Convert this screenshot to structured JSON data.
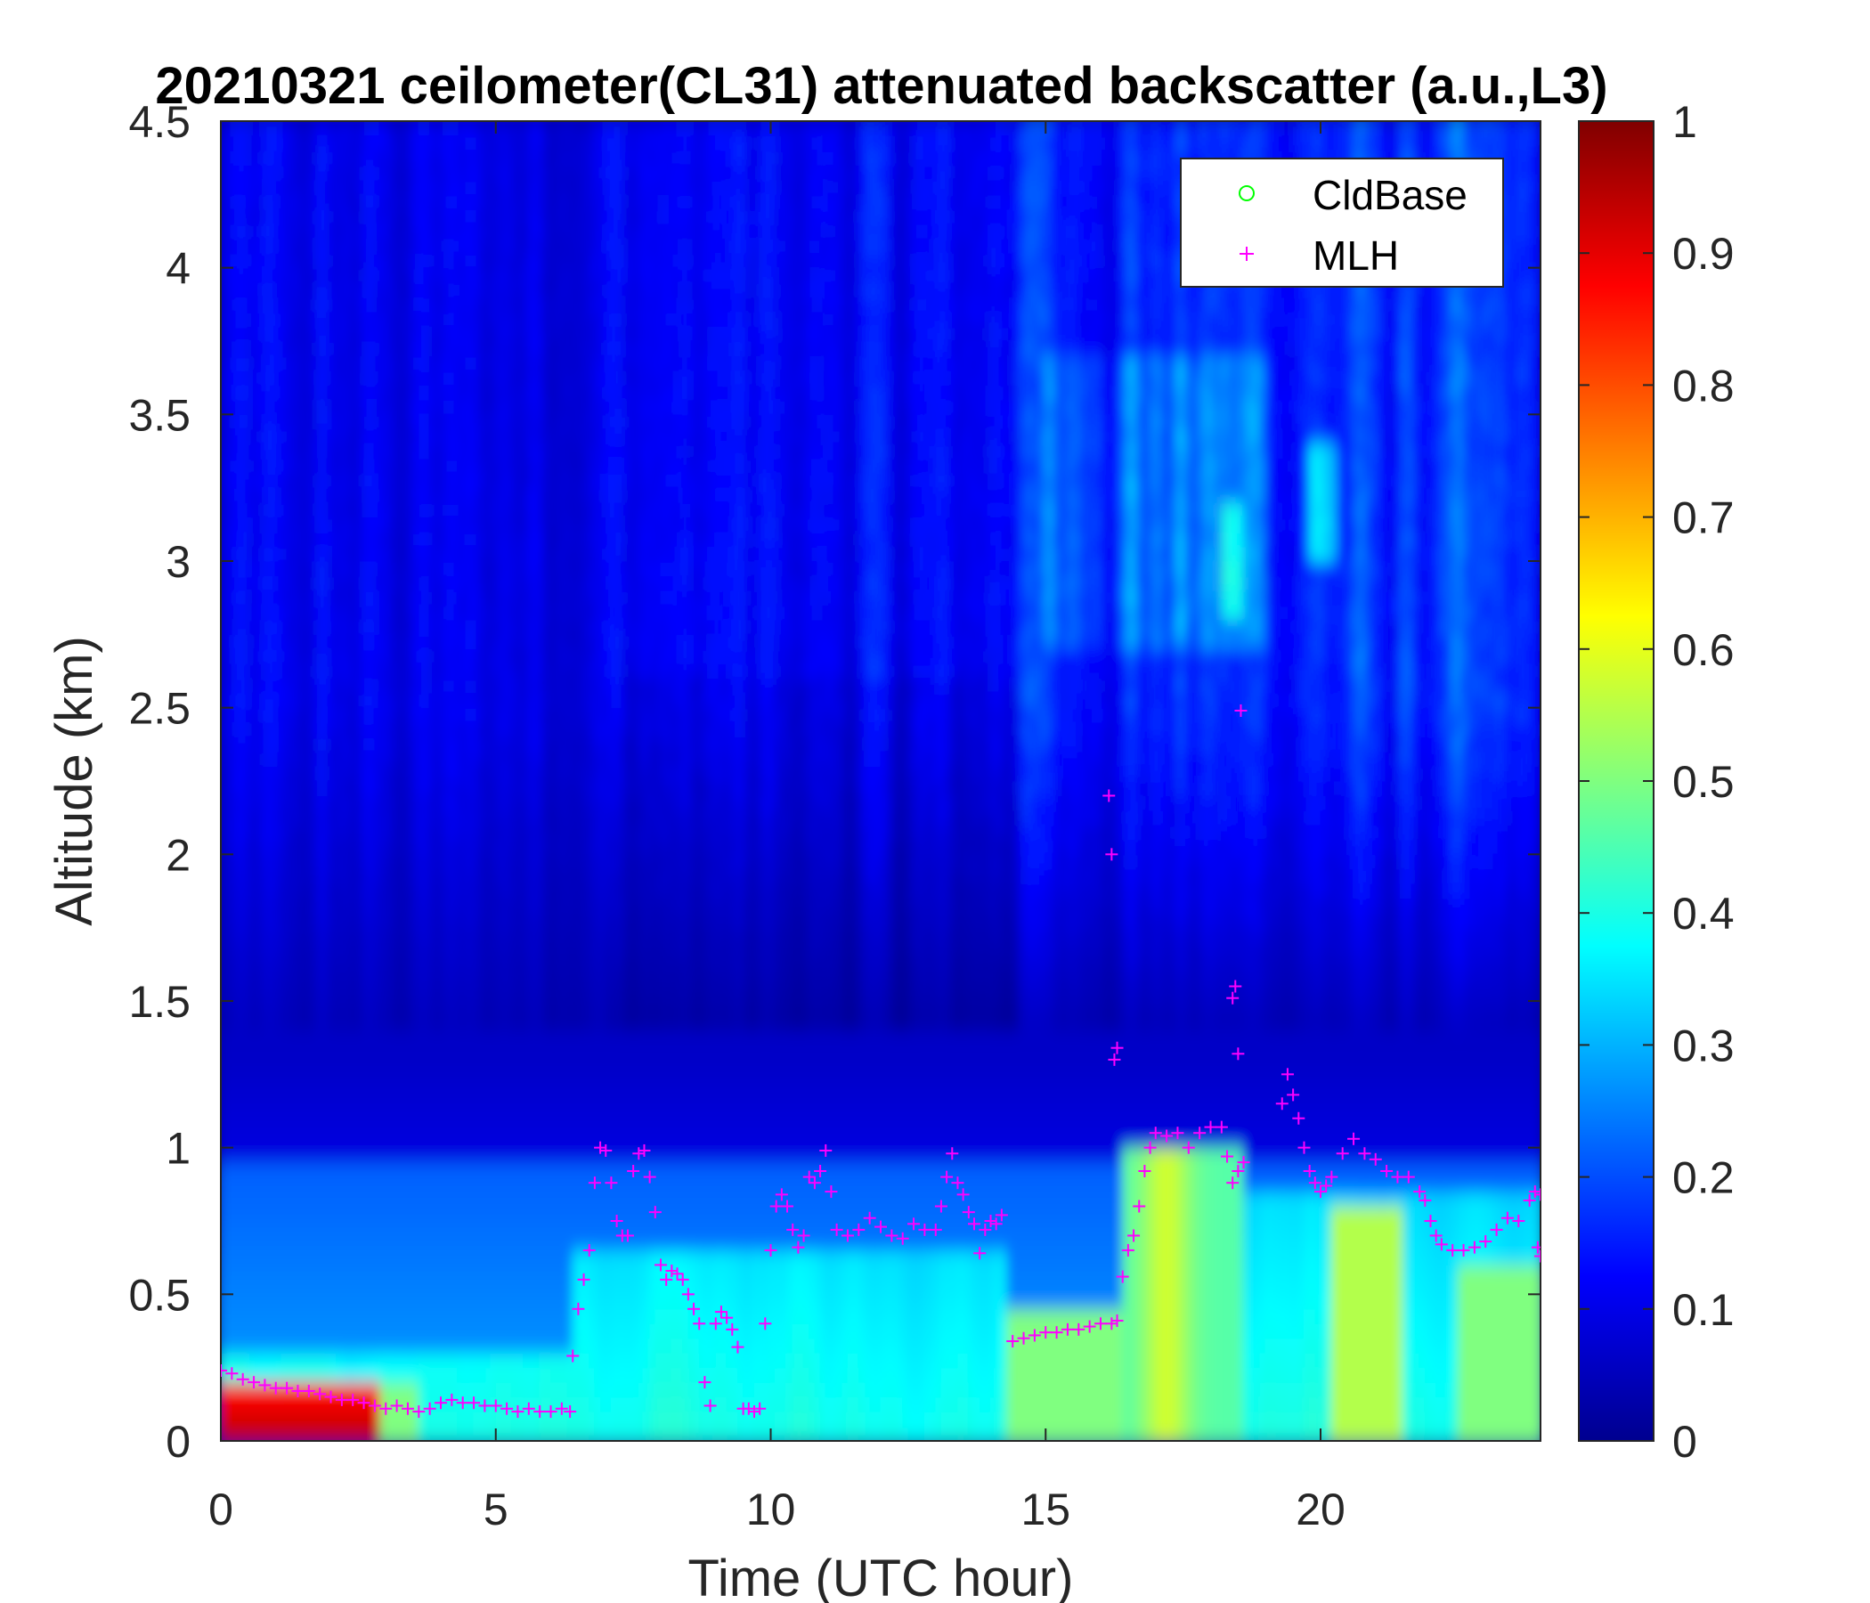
{
  "chart_data": {
    "type": "heatmap",
    "title": "20210321 ceilometer(CL31) attenuated backscatter (a.u.,L3)",
    "xlabel": "Time (UTC hour)",
    "ylabel": "Altitude (km)",
    "xlim": [
      0,
      24
    ],
    "ylim": [
      0,
      4.5
    ],
    "xticks": [
      "0",
      "5",
      "10",
      "15",
      "20"
    ],
    "yticks": [
      "0",
      "0.5",
      "1",
      "1.5",
      "2",
      "2.5",
      "3",
      "3.5",
      "4",
      "4.5"
    ],
    "colorbar": {
      "colormap": "jet",
      "range": [
        0,
        1
      ],
      "ticks": [
        "0",
        "0.1",
        "0.2",
        "0.3",
        "0.4",
        "0.5",
        "0.6",
        "0.7",
        "0.8",
        "0.9",
        "1"
      ]
    },
    "legend": {
      "position": "top-right",
      "entries": [
        {
          "label": "CldBase",
          "marker": "circle",
          "color": "#00ff00"
        },
        {
          "label": "MLH",
          "marker": "plus",
          "color": "#ff00ff"
        }
      ]
    },
    "series": [
      {
        "name": "MLH",
        "marker": "plus",
        "color": "#ff00ff",
        "points": [
          [
            0.0,
            0.24
          ],
          [
            0.2,
            0.23
          ],
          [
            0.4,
            0.21
          ],
          [
            0.6,
            0.2
          ],
          [
            0.8,
            0.19
          ],
          [
            1.0,
            0.18
          ],
          [
            1.2,
            0.18
          ],
          [
            1.4,
            0.17
          ],
          [
            1.6,
            0.17
          ],
          [
            1.8,
            0.16
          ],
          [
            2.0,
            0.15
          ],
          [
            2.2,
            0.14
          ],
          [
            2.4,
            0.14
          ],
          [
            2.6,
            0.13
          ],
          [
            2.8,
            0.12
          ],
          [
            3.0,
            0.11
          ],
          [
            3.2,
            0.12
          ],
          [
            3.4,
            0.11
          ],
          [
            3.6,
            0.1
          ],
          [
            3.8,
            0.11
          ],
          [
            4.0,
            0.13
          ],
          [
            4.2,
            0.14
          ],
          [
            4.4,
            0.13
          ],
          [
            4.6,
            0.13
          ],
          [
            4.8,
            0.12
          ],
          [
            5.0,
            0.12
          ],
          [
            5.2,
            0.11
          ],
          [
            5.4,
            0.1
          ],
          [
            5.6,
            0.11
          ],
          [
            5.8,
            0.1
          ],
          [
            6.0,
            0.1
          ],
          [
            6.2,
            0.11
          ],
          [
            6.35,
            0.1
          ],
          [
            6.4,
            0.29
          ],
          [
            6.5,
            0.45
          ],
          [
            6.6,
            0.55
          ],
          [
            6.7,
            0.65
          ],
          [
            6.8,
            0.88
          ],
          [
            6.9,
            1.0
          ],
          [
            7.0,
            0.99
          ],
          [
            7.1,
            0.88
          ],
          [
            7.2,
            0.75
          ],
          [
            7.3,
            0.7
          ],
          [
            7.4,
            0.7
          ],
          [
            7.5,
            0.92
          ],
          [
            7.6,
            0.98
          ],
          [
            7.7,
            0.99
          ],
          [
            7.8,
            0.9
          ],
          [
            7.9,
            0.78
          ],
          [
            8.0,
            0.6
          ],
          [
            8.1,
            0.55
          ],
          [
            8.2,
            0.58
          ],
          [
            8.3,
            0.57
          ],
          [
            8.4,
            0.55
          ],
          [
            8.5,
            0.5
          ],
          [
            8.6,
            0.45
          ],
          [
            8.7,
            0.4
          ],
          [
            8.8,
            0.2
          ],
          [
            8.9,
            0.12
          ],
          [
            9.0,
            0.4
          ],
          [
            9.1,
            0.44
          ],
          [
            9.2,
            0.42
          ],
          [
            9.3,
            0.38
          ],
          [
            9.4,
            0.32
          ],
          [
            9.5,
            0.11
          ],
          [
            9.6,
            0.11
          ],
          [
            9.7,
            0.1
          ],
          [
            9.8,
            0.11
          ],
          [
            9.9,
            0.4
          ],
          [
            10.0,
            0.65
          ],
          [
            10.1,
            0.8
          ],
          [
            10.2,
            0.84
          ],
          [
            10.3,
            0.8
          ],
          [
            10.4,
            0.72
          ],
          [
            10.5,
            0.66
          ],
          [
            10.6,
            0.7
          ],
          [
            10.7,
            0.9
          ],
          [
            10.8,
            0.88
          ],
          [
            10.9,
            0.92
          ],
          [
            11.0,
            0.99
          ],
          [
            11.1,
            0.85
          ],
          [
            11.2,
            0.72
          ],
          [
            11.4,
            0.7
          ],
          [
            11.6,
            0.72
          ],
          [
            11.8,
            0.76
          ],
          [
            12.0,
            0.73
          ],
          [
            12.2,
            0.7
          ],
          [
            12.4,
            0.69
          ],
          [
            12.6,
            0.74
          ],
          [
            12.8,
            0.72
          ],
          [
            13.0,
            0.72
          ],
          [
            13.1,
            0.8
          ],
          [
            13.2,
            0.9
          ],
          [
            13.3,
            0.98
          ],
          [
            13.4,
            0.88
          ],
          [
            13.5,
            0.84
          ],
          [
            13.6,
            0.78
          ],
          [
            13.7,
            0.74
          ],
          [
            13.8,
            0.64
          ],
          [
            13.9,
            0.72
          ],
          [
            14.0,
            0.75
          ],
          [
            14.1,
            0.74
          ],
          [
            14.2,
            0.77
          ],
          [
            14.4,
            0.34
          ],
          [
            14.6,
            0.35
          ],
          [
            14.8,
            0.36
          ],
          [
            15.0,
            0.37
          ],
          [
            15.2,
            0.37
          ],
          [
            15.4,
            0.38
          ],
          [
            15.6,
            0.38
          ],
          [
            15.8,
            0.39
          ],
          [
            16.0,
            0.4
          ],
          [
            16.2,
            0.4
          ],
          [
            16.3,
            0.41
          ],
          [
            16.4,
            0.56
          ],
          [
            16.5,
            0.65
          ],
          [
            16.6,
            0.7
          ],
          [
            16.7,
            0.8
          ],
          [
            16.8,
            0.92
          ],
          [
            16.9,
            1.0
          ],
          [
            17.0,
            1.05
          ],
          [
            17.2,
            1.04
          ],
          [
            17.4,
            1.05
          ],
          [
            17.6,
            1.0
          ],
          [
            17.8,
            1.05
          ],
          [
            18.0,
            1.07
          ],
          [
            18.2,
            1.07
          ],
          [
            18.3,
            0.97
          ],
          [
            18.4,
            0.88
          ],
          [
            18.5,
            0.92
          ],
          [
            18.6,
            0.95
          ],
          [
            16.15,
            2.2
          ],
          [
            16.2,
            2.0
          ],
          [
            16.25,
            1.3
          ],
          [
            16.3,
            1.34
          ],
          [
            18.4,
            1.51
          ],
          [
            18.45,
            1.55
          ],
          [
            18.5,
            1.32
          ],
          [
            18.55,
            2.49
          ],
          [
            19.3,
            1.15
          ],
          [
            19.4,
            1.25
          ],
          [
            19.5,
            1.18
          ],
          [
            19.6,
            1.1
          ],
          [
            19.7,
            1.0
          ],
          [
            19.8,
            0.92
          ],
          [
            19.9,
            0.88
          ],
          [
            20.0,
            0.85
          ],
          [
            20.1,
            0.87
          ],
          [
            20.2,
            0.9
          ],
          [
            20.4,
            0.98
          ],
          [
            20.6,
            1.03
          ],
          [
            20.8,
            0.98
          ],
          [
            21.0,
            0.96
          ],
          [
            21.2,
            0.92
          ],
          [
            21.4,
            0.9
          ],
          [
            21.6,
            0.9
          ],
          [
            21.8,
            0.85
          ],
          [
            21.9,
            0.82
          ],
          [
            22.0,
            0.75
          ],
          [
            22.1,
            0.7
          ],
          [
            22.2,
            0.67
          ],
          [
            22.4,
            0.65
          ],
          [
            22.6,
            0.65
          ],
          [
            22.8,
            0.66
          ],
          [
            23.0,
            0.68
          ],
          [
            23.2,
            0.72
          ],
          [
            23.4,
            0.76
          ],
          [
            23.6,
            0.75
          ],
          [
            23.8,
            0.82
          ],
          [
            23.9,
            0.85
          ],
          [
            24.0,
            0.84
          ],
          [
            23.95,
            0.66
          ],
          [
            24.0,
            0.63
          ]
        ]
      },
      {
        "name": "CldBase",
        "marker": "circle",
        "color": "#00ff00",
        "points": []
      }
    ]
  }
}
